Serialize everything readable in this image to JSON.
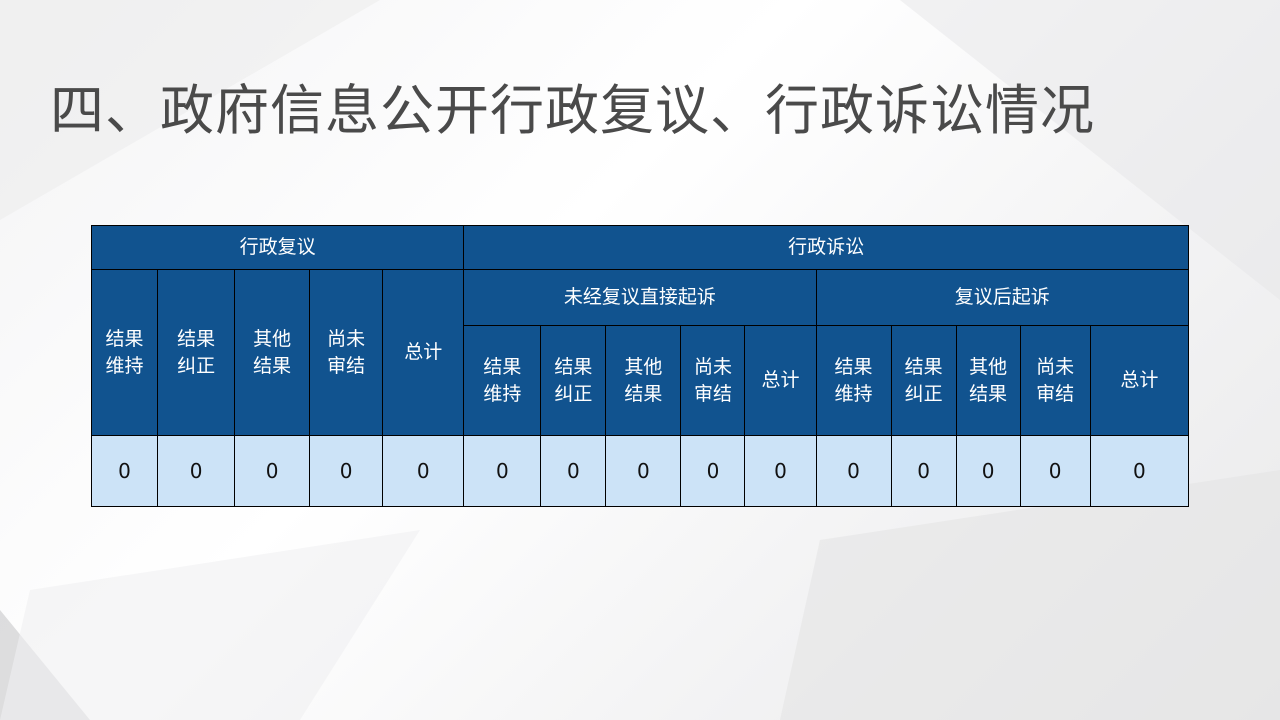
{
  "title": "四、政府信息公开行政复议、行政诉讼情况",
  "colors": {
    "header": "#11538f",
    "data_cell": "#cce3f7",
    "title": "#4a4a4a"
  },
  "table": {
    "review": {
      "label": "行政复议",
      "columns": [
        "结果\n维持",
        "结果\n纠正",
        "其他\n结果",
        "尚未\n审结",
        "总计"
      ],
      "values": [
        "0",
        "0",
        "0",
        "0",
        "0"
      ]
    },
    "litigation": {
      "label": "行政诉讼",
      "direct": {
        "label": "未经复议直接起诉",
        "columns": [
          "结果\n维持",
          "结果\n纠正",
          "其他\n结果",
          "尚未\n审结",
          "总计"
        ],
        "values": [
          "0",
          "0",
          "0",
          "0",
          "0"
        ]
      },
      "after_review": {
        "label": "复议后起诉",
        "columns": [
          "结果\n维持",
          "结果\n纠正",
          "其他\n结果",
          "尚未\n审结",
          "总计"
        ],
        "values": [
          "0",
          "0",
          "0",
          "0",
          "0"
        ]
      }
    }
  }
}
